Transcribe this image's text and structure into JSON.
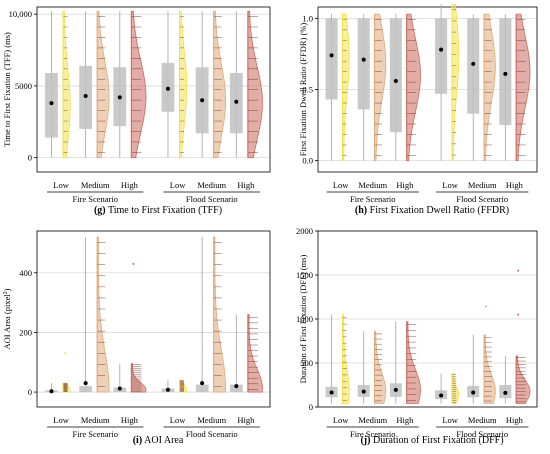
{
  "colors": {
    "low": "#f2e24a",
    "medium": "#e0a97a",
    "high": "#cc6a5e",
    "box": "#c0c0c0",
    "grid": "#d9d9d9"
  },
  "chart_data": [
    {
      "type": "raincloud",
      "panel": "g",
      "caption_letter": "(g)",
      "caption_text": "Time to First Fixation (TFF)",
      "ylabel": "Time to First Fixation (TFF) (ms)",
      "ylim": [
        -1000,
        10500
      ],
      "yticks": [
        0,
        5000,
        10000
      ],
      "ytick_labels": [
        "0",
        "5000",
        "10,000"
      ],
      "grid": true,
      "groups": [
        "Fire Scenario",
        "Flood Scenario"
      ],
      "categories": [
        "Low",
        "Medium",
        "High"
      ],
      "series": [
        {
          "group": "Fire Scenario",
          "category": "Low",
          "mean": 3800,
          "q1": 1400,
          "q3": 5900,
          "min": 0,
          "max": 10200
        },
        {
          "group": "Fire Scenario",
          "category": "Medium",
          "mean": 4300,
          "q1": 2000,
          "q3": 6400,
          "min": 0,
          "max": 10200
        },
        {
          "group": "Fire Scenario",
          "category": "High",
          "mean": 4200,
          "q1": 2200,
          "q3": 6300,
          "min": 0,
          "max": 10200
        },
        {
          "group": "Flood Scenario",
          "category": "Low",
          "mean": 4800,
          "q1": 3200,
          "q3": 6600,
          "min": 0,
          "max": 10200
        },
        {
          "group": "Flood Scenario",
          "category": "Medium",
          "mean": 4000,
          "q1": 1700,
          "q3": 6300,
          "min": 0,
          "max": 10200
        },
        {
          "group": "Flood Scenario",
          "category": "High",
          "mean": 3900,
          "q1": 1700,
          "q3": 5900,
          "min": 0,
          "max": 10200
        }
      ]
    },
    {
      "type": "raincloud",
      "panel": "h",
      "caption_letter": "(h)",
      "caption_text": "First Fixation Dwell Ratio (FFDR)",
      "ylabel": "First Fixation Dwell Ratio (FFDR) (%)",
      "ylim": [
        -0.08,
        1.08
      ],
      "yticks": [
        0,
        0.5,
        1
      ],
      "ytick_labels": [
        "0.0",
        "0.5",
        "1.0"
      ],
      "grid": true,
      "groups": [
        "Fire Scenario",
        "Flood Scenario"
      ],
      "categories": [
        "Low",
        "Medium",
        "High"
      ],
      "series": [
        {
          "group": "Fire Scenario",
          "category": "Low",
          "mean": 0.74,
          "q1": 0.43,
          "q3": 1.0,
          "min": 0,
          "max": 1.03
        },
        {
          "group": "Fire Scenario",
          "category": "Medium",
          "mean": 0.71,
          "q1": 0.36,
          "q3": 1.0,
          "min": 0,
          "max": 1.03
        },
        {
          "group": "Fire Scenario",
          "category": "High",
          "mean": 0.56,
          "q1": 0.2,
          "q3": 1.0,
          "min": 0,
          "max": 1.03
        },
        {
          "group": "Flood Scenario",
          "category": "Low",
          "mean": 0.78,
          "q1": 0.47,
          "q3": 1.0,
          "min": 0,
          "max": 1.1
        },
        {
          "group": "Flood Scenario",
          "category": "Medium",
          "mean": 0.68,
          "q1": 0.33,
          "q3": 1.0,
          "min": 0,
          "max": 1.03
        },
        {
          "group": "Flood Scenario",
          "category": "High",
          "mean": 0.61,
          "q1": 0.25,
          "q3": 1.0,
          "min": 0,
          "max": 1.03
        }
      ]
    },
    {
      "type": "raincloud",
      "panel": "i",
      "caption_letter": "(i)",
      "caption_text": "AOI Area",
      "ylabel_main": "AOI Area (pixel",
      "ylabel_sup": "2",
      "ylabel_end": ")",
      "ylim": [
        -50,
        540
      ],
      "yticks": [
        0,
        200,
        400
      ],
      "ytick_labels": [
        "0",
        "200",
        "400"
      ],
      "grid": true,
      "groups": [
        "Fire Scenario",
        "Flood Scenario"
      ],
      "categories": [
        "Low",
        "Medium",
        "High"
      ],
      "series": [
        {
          "group": "Fire Scenario",
          "category": "Low",
          "mean": 3,
          "q1": 0,
          "q3": 6,
          "min": 0,
          "max": 30,
          "outliers": [
            130
          ]
        },
        {
          "group": "Fire Scenario",
          "category": "Medium",
          "mean": 30,
          "q1": 0,
          "q3": 20,
          "min": 0,
          "max": 520
        },
        {
          "group": "Fire Scenario",
          "category": "High",
          "mean": 12,
          "q1": 0,
          "q3": 15,
          "min": 0,
          "max": 95,
          "outliers": [
            430
          ]
        },
        {
          "group": "Flood Scenario",
          "category": "Low",
          "mean": 8,
          "q1": 0,
          "q3": 12,
          "min": 0,
          "max": 40
        },
        {
          "group": "Flood Scenario",
          "category": "Medium",
          "mean": 30,
          "q1": 0,
          "q3": 25,
          "min": 0,
          "max": 520
        },
        {
          "group": "Flood Scenario",
          "category": "High",
          "mean": 20,
          "q1": 0,
          "q3": 25,
          "min": 0,
          "max": 260
        }
      ]
    },
    {
      "type": "raincloud",
      "panel": "j",
      "caption_letter": "(j)",
      "caption_text": "Duration of First Fixation (DFF)",
      "ylabel": "Duration of First Fixation (DFF) (ms)",
      "ylim": [
        0,
        2000
      ],
      "yticks": [
        0,
        500,
        1000,
        1500,
        2000
      ],
      "ytick_labels": [
        "0",
        "500",
        "1000",
        "1500",
        "2000"
      ],
      "grid": true,
      "groups": [
        "Fire Scenario",
        "Flood Scenario"
      ],
      "categories": [
        "Low",
        "Medium",
        "High"
      ],
      "series": [
        {
          "group": "Fire Scenario",
          "category": "Low",
          "mean": 165,
          "q1": 110,
          "q3": 230,
          "min": 40,
          "max": 1050
        },
        {
          "group": "Fire Scenario",
          "category": "Medium",
          "mean": 175,
          "q1": 115,
          "q3": 250,
          "min": 40,
          "max": 860
        },
        {
          "group": "Fire Scenario",
          "category": "High",
          "mean": 195,
          "q1": 115,
          "q3": 270,
          "min": 40,
          "max": 970
        },
        {
          "group": "Flood Scenario",
          "category": "Low",
          "mean": 130,
          "q1": 90,
          "q3": 190,
          "min": 40,
          "max": 380
        },
        {
          "group": "Flood Scenario",
          "category": "Medium",
          "mean": 165,
          "q1": 110,
          "q3": 240,
          "min": 40,
          "max": 820,
          "outliers": [
            1140
          ]
        },
        {
          "group": "Flood Scenario",
          "category": "High",
          "mean": 160,
          "q1": 100,
          "q3": 250,
          "min": 40,
          "max": 580,
          "outliers": [
            1050,
            1550
          ]
        }
      ]
    }
  ]
}
